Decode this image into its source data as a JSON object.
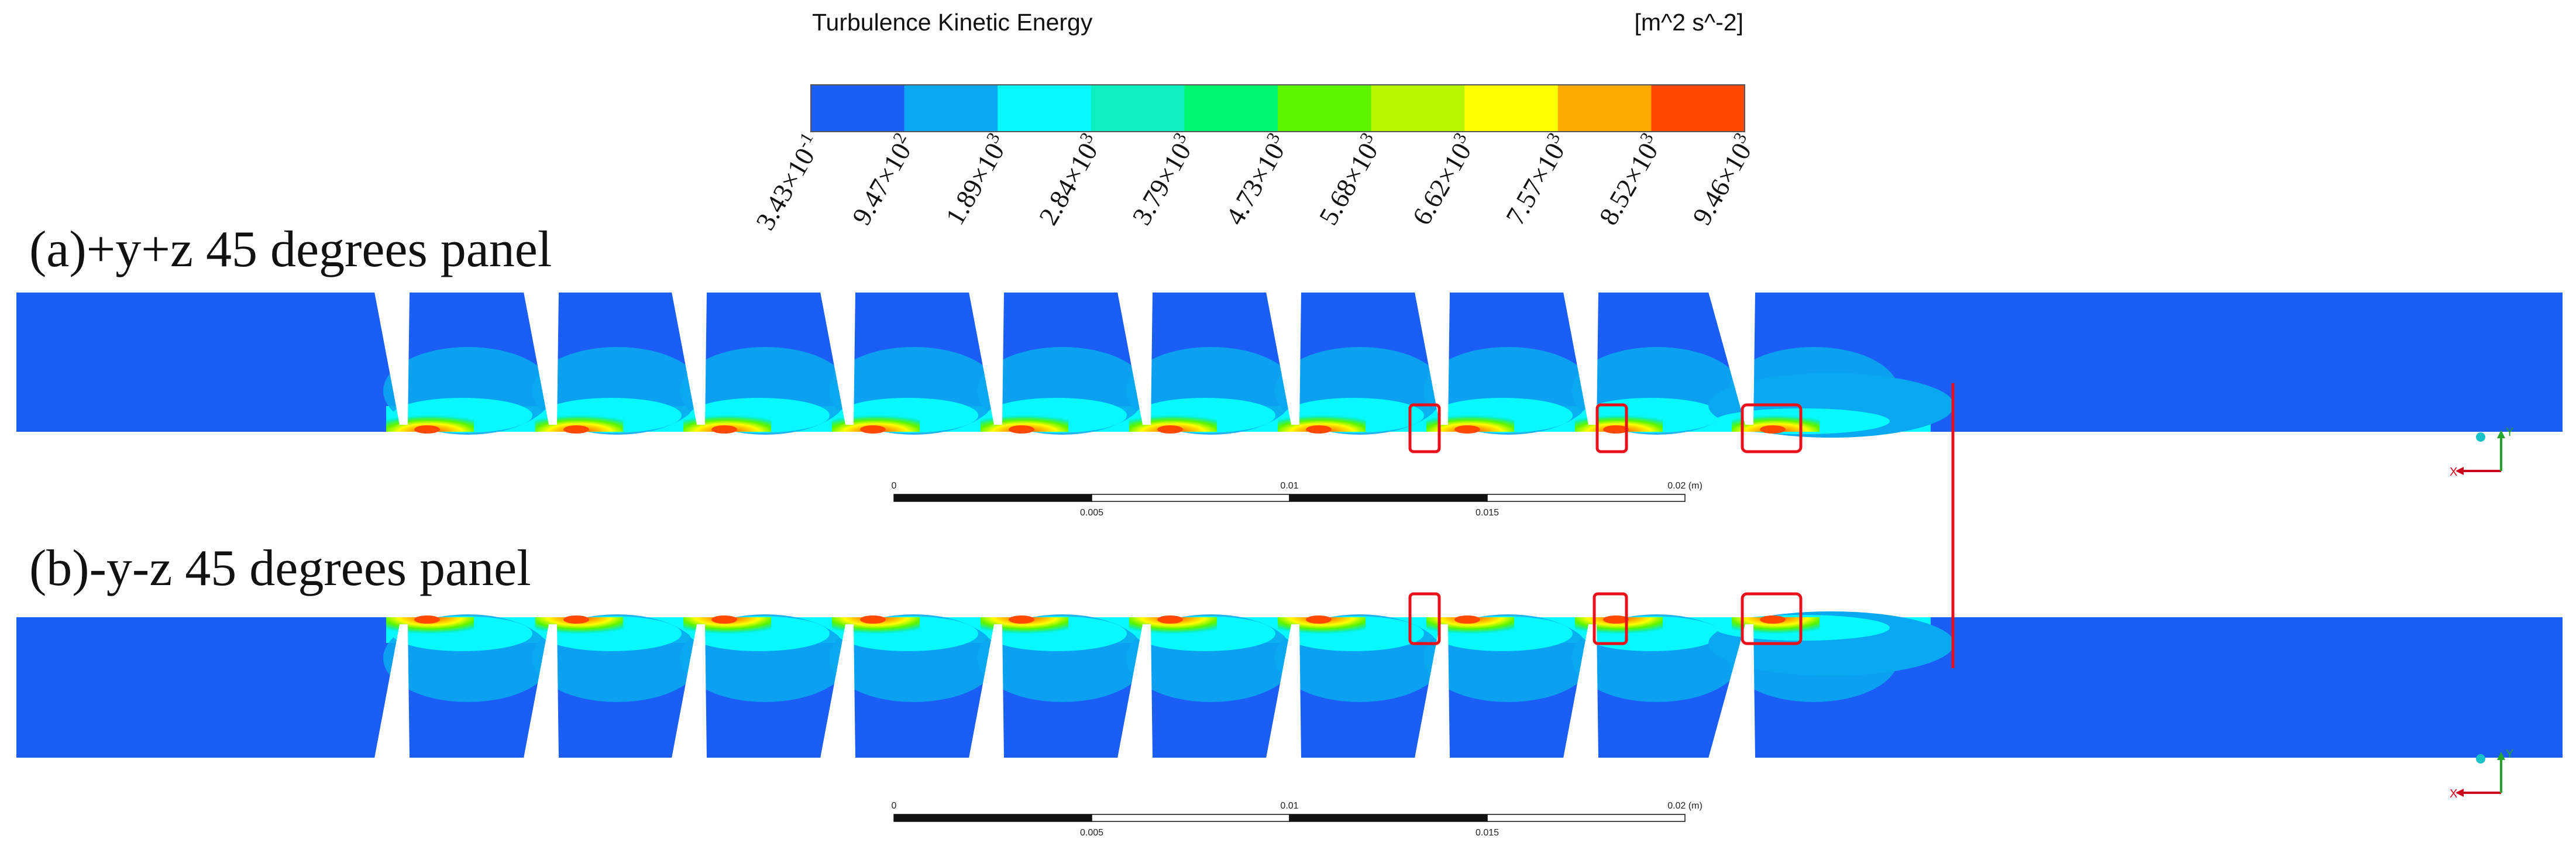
{
  "legend": {
    "title": "Turbulence Kinetic Energy",
    "units": "[m^2 s^-2]",
    "colors": [
      "#1a5ef5",
      "#0aa8f0",
      "#08f8ff",
      "#0bf0be",
      "#00f56e",
      "#5cf500",
      "#b8f500",
      "#ffff00",
      "#ffaa00",
      "#ff4800"
    ],
    "ticks": [
      "3.43×10-1",
      "9.47×102",
      "1.89×103",
      "2.84×103",
      "3.79×103",
      "4.73×103",
      "5.68×103",
      "6.62×103",
      "7.57×103",
      "8.52×103",
      "9.46×103"
    ]
  },
  "panels": [
    {
      "id": "a",
      "label": "(a)+y+z 45 degrees panel"
    },
    {
      "id": "b",
      "label": "(b)-y-z 45 degrees panel"
    }
  ],
  "scale": {
    "labels": [
      "0",
      "0.005",
      "0.01",
      "0.015",
      "0.02 (m)"
    ]
  },
  "axes": {
    "x_label": "X",
    "y_label": "Y"
  }
}
